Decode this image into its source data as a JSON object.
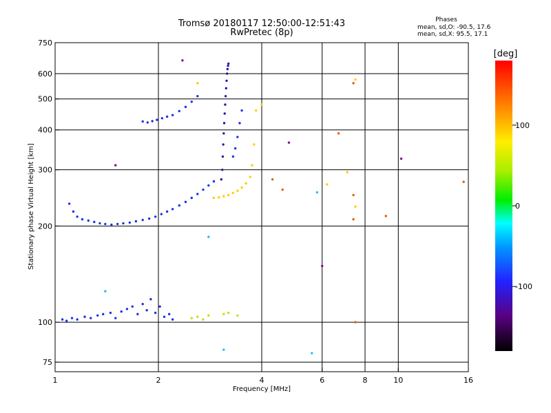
{
  "chart_data": {
    "type": "scatter",
    "title": "Tromsø 20180117 12:50:00-12:51:43",
    "subtitle": "RwPretec (8p)",
    "legend_info": {
      "heading": "Phases",
      "line1": "mean, sd,O: -90.5, 17.6",
      "line2": "mean, sd,X:  95.5, 17.1"
    },
    "xlabel": "Frequency [MHz]",
    "ylabel": "Stationary phase Virtual Height [km]",
    "x_scale": "log",
    "y_scale": "log",
    "xlim": [
      1,
      16
    ],
    "ylim": [
      70,
      750
    ],
    "x_ticks": [
      1,
      2,
      4,
      6,
      8,
      10,
      16
    ],
    "x_tick_labels": [
      "1",
      "2",
      "4",
      "6",
      "8",
      "10",
      "16"
    ],
    "y_ticks": [
      75,
      100,
      200,
      300,
      400,
      500,
      600,
      750
    ],
    "y_tick_labels": [
      "75",
      "100",
      "200",
      "300",
      "400",
      "500",
      "600",
      "750"
    ],
    "grid": true,
    "colorbar": {
      "label": "[deg]",
      "range": [
        -180,
        180
      ],
      "ticks": [
        -100,
        0,
        100
      ],
      "tick_labels": [
        "-100",
        "0",
        "100"
      ]
    },
    "series": [
      {
        "color": "#1a33e6",
        "phase": -100,
        "x": [
          1.05,
          1.08,
          1.12,
          1.16,
          1.22,
          1.27,
          1.33,
          1.38,
          1.45,
          1.5,
          1.56,
          1.62,
          1.68,
          1.74,
          1.8,
          1.85,
          1.9,
          1.96,
          2.02,
          2.08,
          2.15,
          2.2
        ],
        "y": [
          102,
          101,
          103,
          102,
          104,
          103,
          105,
          106,
          107,
          103,
          108,
          110,
          112,
          106,
          114,
          109,
          118,
          107,
          112,
          104,
          106,
          102
        ]
      },
      {
        "color": "#1a33e6",
        "phase": -100,
        "x": [
          1.1,
          1.13,
          1.16,
          1.2,
          1.25,
          1.3,
          1.35,
          1.4,
          1.46,
          1.52,
          1.58,
          1.65,
          1.72,
          1.8,
          1.88,
          1.96,
          2.04,
          2.12,
          2.2,
          2.3,
          2.4,
          2.5,
          2.6,
          2.7,
          2.8,
          2.9
        ],
        "y": [
          235,
          222,
          214,
          210,
          208,
          206,
          204,
          203,
          202,
          203,
          204,
          205,
          207,
          209,
          211,
          214,
          218,
          222,
          226,
          232,
          238,
          245,
          252,
          260,
          268,
          276
        ]
      },
      {
        "color": "#2a1a9c",
        "phase": -120,
        "x": [
          3.05,
          3.07,
          3.08,
          3.09,
          3.1,
          3.11,
          3.12,
          3.13,
          3.14,
          3.15,
          3.16,
          3.17,
          3.18,
          3.19,
          3.2
        ],
        "y": [
          280,
          300,
          330,
          360,
          390,
          420,
          450,
          480,
          510,
          540,
          570,
          600,
          620,
          635,
          645
        ]
      },
      {
        "color": "#1a33e6",
        "phase": -100,
        "x": [
          1.8,
          1.86,
          1.92,
          1.98,
          2.05,
          2.12,
          2.2,
          2.3,
          2.4,
          2.5,
          2.6
        ],
        "y": [
          425,
          422,
          426,
          430,
          435,
          440,
          445,
          458,
          472,
          490,
          510
        ]
      },
      {
        "color": "#1a33e6",
        "phase": -100,
        "x": [
          3.3,
          3.35,
          3.4,
          3.45,
          3.5
        ],
        "y": [
          330,
          350,
          380,
          420,
          460
        ]
      },
      {
        "color": "#ffcc00",
        "phase": 100,
        "x": [
          2.9,
          3.0,
          3.1,
          3.2,
          3.3,
          3.4,
          3.5,
          3.6,
          3.7,
          3.75,
          3.8,
          3.85
        ],
        "y": [
          245,
          246,
          248,
          250,
          254,
          258,
          264,
          272,
          285,
          310,
          360,
          460
        ]
      },
      {
        "color": "#ccdd00",
        "phase": 85,
        "x": [
          2.5,
          2.6,
          2.7,
          2.8,
          3.1,
          3.2,
          3.4
        ],
        "y": [
          103,
          104,
          102,
          105,
          106,
          107,
          105
        ]
      },
      {
        "color": "#e06000",
        "phase": 150,
        "x": [
          4.3,
          4.6,
          6.7,
          7.4,
          7.4,
          7.4,
          7.5,
          9.2,
          15.5
        ],
        "y": [
          280,
          260,
          390,
          560,
          250,
          210,
          100,
          215,
          275
        ]
      },
      {
        "color": "#ffcc00",
        "phase": 100,
        "x": [
          2.6,
          4.0,
          7.1,
          7.5,
          7.5,
          6.2
        ],
        "y": [
          560,
          480,
          295,
          575,
          230,
          270
        ]
      },
      {
        "color": "#20c0ff",
        "phase": -40,
        "x": [
          2.8,
          1.4,
          5.6,
          5.8,
          3.1
        ],
        "y": [
          185,
          125,
          80,
          255,
          82
        ]
      },
      {
        "color": "#880088",
        "phase": -160,
        "x": [
          2.35,
          4.8,
          6.0,
          10.2,
          1.5
        ],
        "y": [
          660,
          365,
          150,
          325,
          310
        ]
      }
    ]
  }
}
